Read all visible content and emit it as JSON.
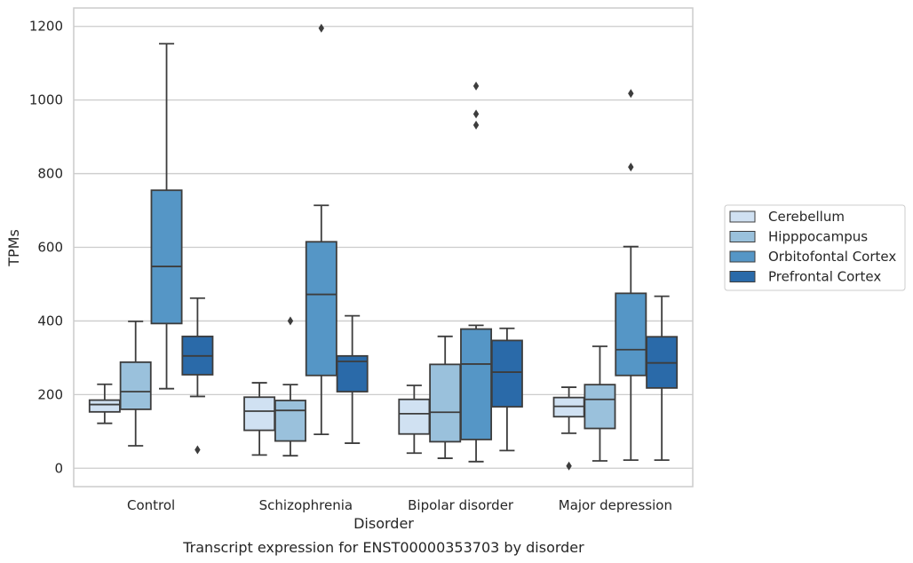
{
  "chart_data": {
    "type": "box",
    "title": "",
    "caption": "Transcript expression for ENST00000353703 by disorder",
    "xlabel": "Disorder",
    "ylabel": "TPMs",
    "ylim": [
      -50,
      1250
    ],
    "yticks": [
      0,
      200,
      400,
      600,
      800,
      1000,
      1200
    ],
    "grid": "horizontal",
    "legend_position": "right",
    "categories": [
      "Control",
      "Schizophrenia",
      "Bipolar disorder",
      "Major depression"
    ],
    "series": [
      {
        "name": "Cerebellum",
        "color": "#d0e1f2",
        "boxes": [
          {
            "min": 122,
            "q1": 153,
            "median": 173,
            "q3": 185,
            "max": 228,
            "outliers": []
          },
          {
            "min": 36,
            "q1": 103,
            "median": 155,
            "q3": 193,
            "max": 232,
            "outliers": []
          },
          {
            "min": 41,
            "q1": 93,
            "median": 148,
            "q3": 187,
            "max": 225,
            "outliers": []
          },
          {
            "min": 95,
            "q1": 140,
            "median": 168,
            "q3": 192,
            "max": 220,
            "outliers": [
              6
            ]
          }
        ]
      },
      {
        "name": "Hipppocampus",
        "color": "#9ac1dc",
        "boxes": [
          {
            "min": 61,
            "q1": 160,
            "median": 208,
            "q3": 288,
            "max": 399,
            "outliers": []
          },
          {
            "min": 34,
            "q1": 74,
            "median": 157,
            "q3": 184,
            "max": 227,
            "outliers": [
              400
            ]
          },
          {
            "min": 27,
            "q1": 72,
            "median": 152,
            "q3": 282,
            "max": 358,
            "outliers": []
          },
          {
            "min": 20,
            "q1": 108,
            "median": 187,
            "q3": 227,
            "max": 331,
            "outliers": []
          }
        ]
      },
      {
        "name": "Orbitofontal Cortex",
        "color": "#5596c6",
        "boxes": [
          {
            "min": 216,
            "q1": 393,
            "median": 548,
            "q3": 755,
            "max": 1153,
            "outliers": []
          },
          {
            "min": 92,
            "q1": 252,
            "median": 472,
            "q3": 615,
            "max": 714,
            "outliers": [
              1195
            ]
          },
          {
            "min": 18,
            "q1": 78,
            "median": 283,
            "q3": 378,
            "max": 388,
            "outliers": [
              932,
              962,
              1038
            ]
          },
          {
            "min": 22,
            "q1": 252,
            "median": 322,
            "q3": 475,
            "max": 602,
            "outliers": [
              818,
              1018
            ]
          }
        ]
      },
      {
        "name": "Prefrontal Cortex",
        "color": "#2a6aa9",
        "boxes": [
          {
            "min": 195,
            "q1": 254,
            "median": 305,
            "q3": 358,
            "max": 462,
            "outliers": [
              50
            ]
          },
          {
            "min": 68,
            "q1": 208,
            "median": 290,
            "q3": 305,
            "max": 414,
            "outliers": []
          },
          {
            "min": 48,
            "q1": 167,
            "median": 261,
            "q3": 347,
            "max": 380,
            "outliers": []
          },
          {
            "min": 22,
            "q1": 218,
            "median": 286,
            "q3": 357,
            "max": 467,
            "outliers": []
          }
        ]
      }
    ]
  }
}
